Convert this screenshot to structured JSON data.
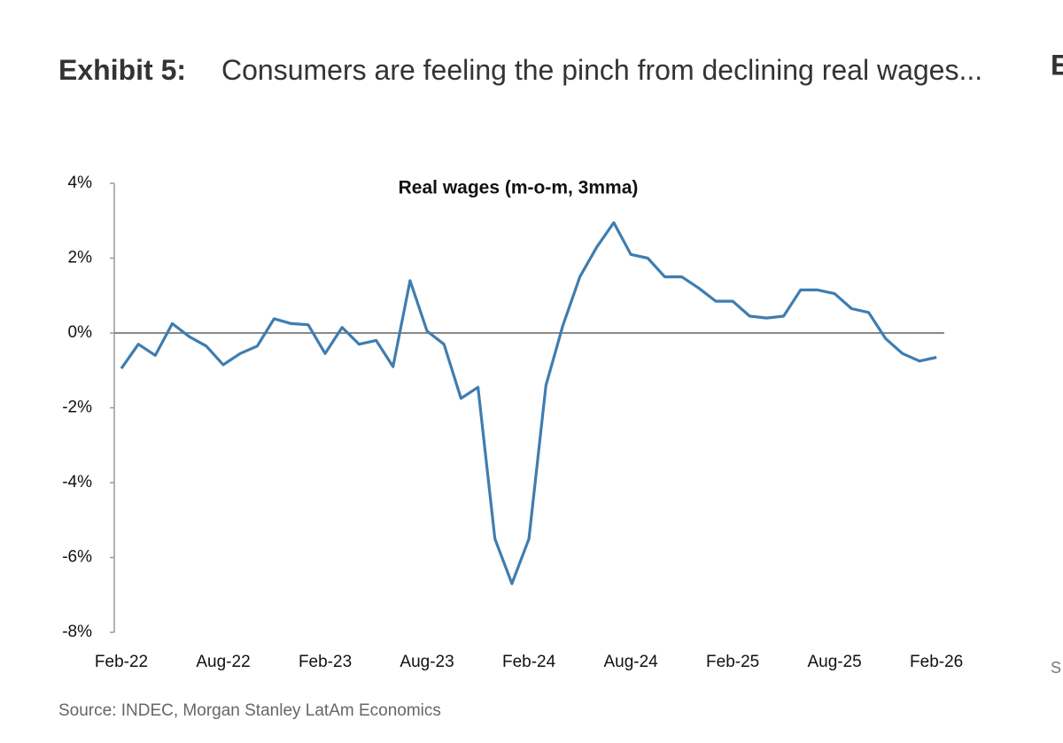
{
  "exhibit": "Exhibit 5:",
  "headline": "Consumers are feeling the pinch from declining real wages...",
  "neighbor_fragments": [
    "E",
    "S"
  ],
  "chart_data": {
    "type": "line",
    "title": "Real wages (m-o-m, 3mma)",
    "source": "Source: INDEC, Morgan Stanley LatAm Economics",
    "categories": [
      "Feb-22",
      null,
      null,
      null,
      null,
      null,
      "Aug-22",
      null,
      null,
      null,
      null,
      null,
      "Feb-23",
      null,
      null,
      null,
      null,
      null,
      "Aug-23",
      null,
      null,
      null,
      null,
      null,
      "Feb-24",
      null,
      null,
      null,
      null,
      null,
      "Aug-24",
      null,
      null,
      null,
      null,
      null,
      "Feb-25",
      null,
      null,
      null,
      null,
      null,
      "Aug-25",
      null,
      null,
      null,
      null,
      null,
      "Feb-26"
    ],
    "series": [
      {
        "name": "Real wages",
        "color": "#3f7db0",
        "values": [
          -0.95,
          -0.3,
          -0.6,
          0.25,
          -0.1,
          -0.35,
          -0.85,
          -0.55,
          -0.35,
          0.38,
          0.25,
          0.22,
          -0.55,
          0.15,
          -0.3,
          -0.2,
          -0.9,
          1.4,
          0.05,
          -0.3,
          -1.75,
          -1.45,
          -5.5,
          -6.7,
          -5.5,
          -1.4,
          0.2,
          1.5,
          2.3,
          2.95,
          2.1,
          2.0,
          1.5,
          1.5,
          1.2,
          0.85,
          0.85,
          0.45,
          0.4,
          0.45,
          1.15,
          1.15,
          1.05,
          0.65,
          0.55,
          -0.15,
          -0.55,
          -0.75,
          -0.65
        ]
      }
    ],
    "ylim": [
      -8,
      4
    ],
    "yticks": [
      {
        "value": 4,
        "label": "4%"
      },
      {
        "value": 2,
        "label": "2%"
      },
      {
        "value": 0,
        "label": "0%"
      },
      {
        "value": -2,
        "label": "-2%"
      },
      {
        "value": -4,
        "label": "-4%"
      },
      {
        "value": -6,
        "label": "-6%"
      },
      {
        "value": -8,
        "label": "-8%"
      }
    ],
    "zero_line": true
  }
}
